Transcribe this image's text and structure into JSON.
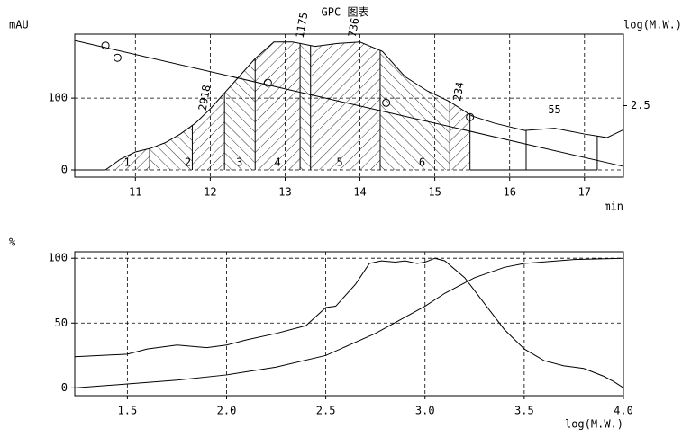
{
  "chart_data": [
    {
      "type": "line",
      "title": "GPC 图表",
      "ylabel": "mAU",
      "y2label": "log(M.W.)",
      "xlabel": "min",
      "xlim": [
        10.19,
        17.52
      ],
      "ylim": [
        -10,
        189
      ],
      "y2lim": [
        1.5,
        3.5
      ],
      "xticks": [
        11,
        12,
        13,
        14,
        15,
        16,
        17
      ],
      "yticks": [
        0,
        100
      ],
      "y2ticks": [
        2.5
      ],
      "grid": true,
      "series": [
        {
          "color": "#000000",
          "x": [
            10.19,
            10.6,
            10.8,
            11.0,
            11.2,
            11.4,
            11.6,
            11.8,
            12.0,
            12.3,
            12.6,
            12.85,
            13.1,
            13.4,
            13.7,
            14.0,
            14.3,
            14.6,
            14.9,
            15.2,
            15.5,
            15.8,
            16.2,
            16.6,
            17.0,
            17.3,
            17.52
          ],
          "values": [
            0,
            0,
            15,
            25,
            30,
            38,
            50,
            65,
            85,
            120,
            155,
            178,
            178,
            172,
            176,
            178,
            165,
            130,
            110,
            95,
            75,
            65,
            55,
            58,
            50,
            45,
            56
          ]
        },
        {
          "color": "#000000",
          "axis": "y2",
          "x": [
            10.19,
            17.52
          ],
          "values": [
            3.41,
            1.65
          ]
        },
        {
          "color": "#000000",
          "axis": "y2",
          "marker": "circle",
          "x": [
            10.6,
            10.76,
            12.77,
            14.35,
            15.47
          ],
          "values": [
            3.34,
            3.17,
            2.82,
            2.54,
            2.34
          ]
        }
      ],
      "slice_bounds": [
        10.6,
        11.19,
        11.76,
        12.19,
        12.6,
        13.2,
        13.34,
        14.27,
        15.2,
        15.47,
        16.22,
        17.17
      ],
      "slice_labels": [
        {
          "text": "1",
          "x": 10.89
        },
        {
          "text": "2",
          "x": 11.7
        },
        {
          "text": "3",
          "x": 12.39
        },
        {
          "text": "4",
          "x": 12.9
        },
        {
          "text": "5",
          "x": 13.73
        },
        {
          "text": "6",
          "x": 14.83
        }
      ],
      "annotations": [
        {
          "text": "2918",
          "x": 11.9
        },
        {
          "text": "1175",
          "x": 13.2
        },
        {
          "text": "736",
          "x": 13.9
        },
        {
          "text": "234",
          "x": 15.3
        },
        {
          "text": "55",
          "x": 16.6
        }
      ]
    },
    {
      "type": "line",
      "ylabel": "%",
      "xlabel": "log(M.W.)",
      "xlim": [
        1.235,
        4.0
      ],
      "ylim": [
        -6,
        105
      ],
      "xticks": [
        {
          "value": 1.5,
          "label": "1.5"
        },
        {
          "value": 2,
          "label": "2.0"
        },
        {
          "value": 2.5,
          "label": "2.5"
        },
        {
          "value": 3,
          "label": "3.0"
        },
        {
          "value": 3.5,
          "label": "3.5"
        },
        {
          "value": 4,
          "label": "4.0"
        }
      ],
      "yticks": [
        0,
        50,
        100
      ],
      "grid": true,
      "series": [
        {
          "color": "#000000",
          "x": [
            1.235,
            1.5,
            1.6,
            1.75,
            1.9,
            2.0,
            2.1,
            2.25,
            2.4,
            2.5,
            2.55,
            2.65,
            2.72,
            2.78,
            2.85,
            2.9,
            2.96,
            3.0,
            3.05,
            3.1,
            3.2,
            3.3,
            3.4,
            3.5,
            3.6,
            3.7,
            3.8,
            3.9,
            3.95,
            4.0
          ],
          "values": [
            24,
            26,
            30,
            33,
            31,
            33,
            37,
            42,
            48,
            62,
            63,
            80,
            96,
            98,
            97,
            98,
            96,
            97,
            100,
            98,
            85,
            65,
            45,
            30,
            21,
            17,
            15,
            9,
            5,
            0
          ]
        },
        {
          "color": "#000000",
          "x": [
            1.235,
            1.5,
            1.75,
            2.0,
            2.25,
            2.5,
            2.75,
            3.0,
            3.1,
            3.25,
            3.4,
            3.5,
            3.75,
            4.0
          ],
          "values": [
            0,
            3,
            6,
            10,
            16,
            25,
            42,
            63,
            73,
            85,
            93,
            96,
            99,
            100
          ]
        }
      ]
    }
  ]
}
